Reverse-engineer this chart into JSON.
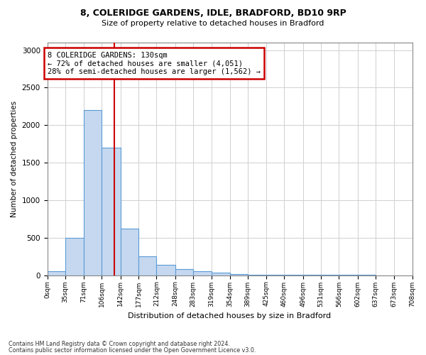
{
  "title1": "8, COLERIDGE GARDENS, IDLE, BRADFORD, BD10 9RP",
  "title2": "Size of property relative to detached houses in Bradford",
  "xlabel": "Distribution of detached houses by size in Bradford",
  "ylabel": "Number of detached properties",
  "bin_edges": [
    0,
    35,
    71,
    106,
    142,
    177,
    212,
    248,
    283,
    319,
    354,
    389,
    425,
    460,
    496,
    531,
    566,
    602,
    637,
    673,
    708
  ],
  "bar_heights": [
    50,
    500,
    2200,
    1700,
    620,
    250,
    140,
    80,
    50,
    30,
    15,
    8,
    5,
    5,
    3,
    2,
    2,
    2,
    1,
    1
  ],
  "bar_color": "#c5d8f0",
  "bar_edge_color": "#5b9bd5",
  "vline_x": 130,
  "vline_color": "#cc0000",
  "annotation_text": "8 COLERIDGE GARDENS: 130sqm\n← 72% of detached houses are smaller (4,051)\n28% of semi-detached houses are larger (1,562) →",
  "annotation_box_color": "#cc0000",
  "ylim": [
    0,
    3100
  ],
  "yticks": [
    0,
    500,
    1000,
    1500,
    2000,
    2500,
    3000
  ],
  "footer1": "Contains HM Land Registry data © Crown copyright and database right 2024.",
  "footer2": "Contains public sector information licensed under the Open Government Licence v3.0.",
  "background_color": "#ffffff",
  "grid_color": "#d0d0d0"
}
